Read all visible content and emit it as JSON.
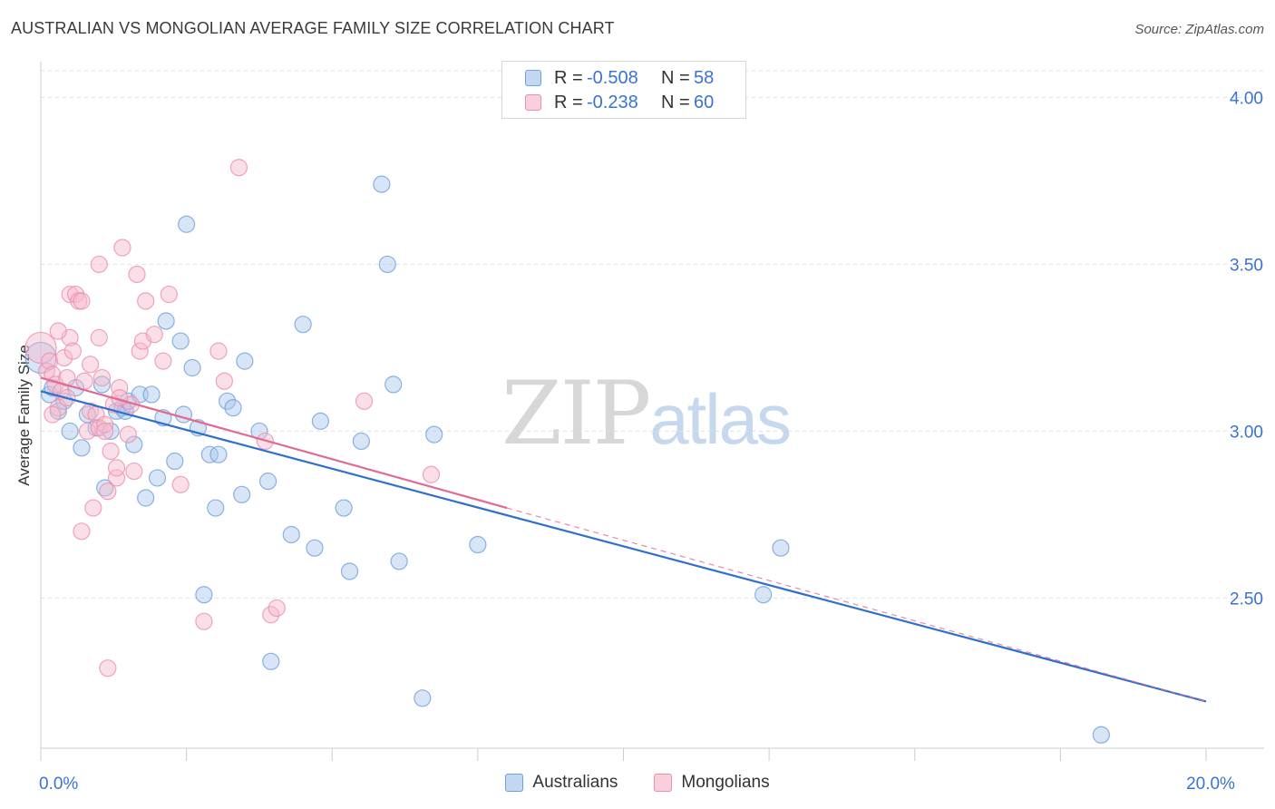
{
  "header": {
    "title": "AUSTRALIAN VS MONGOLIAN AVERAGE FAMILY SIZE CORRELATION CHART",
    "source": "Source: ZipAtlas.com"
  },
  "watermark": {
    "zip": "ZIP",
    "atlas": "atlas"
  },
  "legend": {
    "rows": [
      {
        "r_label": "R =",
        "r_value": "-0.508",
        "n_label": "N =",
        "n_value": "58"
      },
      {
        "r_label": "R =",
        "r_value": "-0.238",
        "n_label": "N =",
        "n_value": "60"
      }
    ]
  },
  "colors": {
    "blue_fill": "#a9c6ee",
    "blue_stroke": "#6f9fdd",
    "blue_line": "#2f6fd0",
    "pink_fill": "#f6b9cc",
    "pink_stroke": "#ec8fab",
    "pink_line": "#e06a93",
    "axis_text": "#3b73d0",
    "grid": "#e0e0e0"
  },
  "chart_data": {
    "type": "scatter",
    "title": "AUSTRALIAN VS MONGOLIAN AVERAGE FAMILY SIZE CORRELATION CHART",
    "xlabel": "",
    "ylabel": "Average Family Size",
    "xlim": [
      0,
      20
    ],
    "ylim": [
      2.05,
      4.08
    ],
    "x_tick_labels": [
      {
        "value": 0,
        "label": "0.0%"
      },
      {
        "value": 20,
        "label": "20.0%"
      }
    ],
    "y_ticks": [
      {
        "value": 2.5,
        "label": "2.50"
      },
      {
        "value": 3.0,
        "label": "3.00"
      },
      {
        "value": 3.5,
        "label": "3.50"
      },
      {
        "value": 4.0,
        "label": "4.00"
      }
    ],
    "grid": true,
    "legend_position": "top-center",
    "series": [
      {
        "name": "Australians",
        "color": "#a9c6ee",
        "trend": {
          "x": [
            0,
            20
          ],
          "y": [
            3.12,
            2.19
          ],
          "style": "solid"
        },
        "points": [
          [
            0.0,
            3.22
          ],
          [
            0.15,
            3.11
          ],
          [
            0.2,
            3.13
          ],
          [
            0.3,
            3.06
          ],
          [
            0.4,
            3.09
          ],
          [
            0.5,
            3.0
          ],
          [
            0.6,
            3.13
          ],
          [
            0.7,
            2.95
          ],
          [
            0.8,
            3.05
          ],
          [
            0.95,
            3.01
          ],
          [
            1.05,
            3.14
          ],
          [
            1.1,
            2.83
          ],
          [
            1.2,
            3.0
          ],
          [
            1.3,
            3.06
          ],
          [
            1.4,
            3.07
          ],
          [
            1.45,
            3.06
          ],
          [
            1.5,
            3.09
          ],
          [
            1.6,
            2.96
          ],
          [
            1.7,
            3.11
          ],
          [
            1.8,
            2.8
          ],
          [
            1.9,
            3.11
          ],
          [
            2.0,
            2.86
          ],
          [
            2.1,
            3.04
          ],
          [
            2.15,
            3.33
          ],
          [
            2.3,
            2.91
          ],
          [
            2.4,
            3.27
          ],
          [
            2.45,
            3.05
          ],
          [
            2.5,
            3.62
          ],
          [
            2.6,
            3.19
          ],
          [
            2.7,
            3.01
          ],
          [
            2.8,
            2.51
          ],
          [
            2.9,
            2.93
          ],
          [
            3.0,
            2.77
          ],
          [
            3.05,
            2.93
          ],
          [
            3.2,
            3.09
          ],
          [
            3.3,
            3.07
          ],
          [
            3.45,
            2.81
          ],
          [
            3.5,
            3.21
          ],
          [
            3.75,
            3.0
          ],
          [
            3.9,
            2.85
          ],
          [
            3.95,
            2.31
          ],
          [
            4.3,
            2.69
          ],
          [
            4.5,
            3.32
          ],
          [
            4.7,
            2.65
          ],
          [
            4.8,
            3.03
          ],
          [
            5.2,
            2.77
          ],
          [
            5.3,
            2.58
          ],
          [
            5.5,
            2.97
          ],
          [
            5.85,
            3.74
          ],
          [
            5.95,
            3.5
          ],
          [
            6.05,
            3.14
          ],
          [
            6.15,
            2.61
          ],
          [
            6.55,
            2.2
          ],
          [
            6.75,
            2.99
          ],
          [
            7.5,
            2.66
          ],
          [
            12.4,
            2.51
          ],
          [
            12.7,
            2.65
          ],
          [
            18.2,
            2.09
          ]
        ]
      },
      {
        "name": "Mongolians",
        "color": "#f6b9cc",
        "trend": {
          "x": [
            0,
            8
          ],
          "y": [
            3.16,
            2.77
          ],
          "style": "solid",
          "extended_to": [
            20,
            2.19
          ],
          "extended_style": "dashed"
        },
        "points": [
          [
            0.0,
            3.25
          ],
          [
            0.1,
            3.18
          ],
          [
            0.15,
            3.21
          ],
          [
            0.2,
            3.17
          ],
          [
            0.25,
            3.14
          ],
          [
            0.3,
            3.07
          ],
          [
            0.35,
            3.12
          ],
          [
            0.4,
            3.22
          ],
          [
            0.45,
            3.16
          ],
          [
            0.5,
            3.28
          ],
          [
            0.55,
            3.24
          ],
          [
            0.5,
            3.41
          ],
          [
            0.6,
            3.41
          ],
          [
            0.65,
            3.39
          ],
          [
            0.7,
            3.39
          ],
          [
            0.7,
            2.7
          ],
          [
            0.8,
            3.0
          ],
          [
            0.85,
            3.06
          ],
          [
            0.9,
            2.77
          ],
          [
            0.95,
            3.05
          ],
          [
            1.0,
            3.01
          ],
          [
            1.0,
            3.28
          ],
          [
            1.05,
            3.16
          ],
          [
            1.1,
            3.02
          ],
          [
            1.15,
            2.82
          ],
          [
            1.2,
            2.94
          ],
          [
            1.25,
            3.08
          ],
          [
            1.3,
            2.86
          ],
          [
            1.3,
            2.89
          ],
          [
            1.35,
            3.13
          ],
          [
            1.4,
            3.55
          ],
          [
            1.5,
            2.99
          ],
          [
            1.55,
            3.08
          ],
          [
            1.6,
            2.88
          ],
          [
            1.65,
            3.47
          ],
          [
            1.7,
            3.24
          ],
          [
            1.75,
            3.27
          ],
          [
            1.8,
            3.39
          ],
          [
            1.95,
            3.29
          ],
          [
            2.1,
            3.21
          ],
          [
            2.2,
            3.41
          ],
          [
            2.4,
            2.84
          ],
          [
            2.8,
            2.43
          ],
          [
            3.05,
            3.24
          ],
          [
            3.15,
            3.15
          ],
          [
            3.4,
            3.79
          ],
          [
            3.85,
            2.97
          ],
          [
            3.95,
            2.45
          ],
          [
            4.05,
            2.47
          ],
          [
            5.55,
            3.09
          ],
          [
            6.7,
            2.87
          ],
          [
            1.15,
            2.29
          ],
          [
            1.0,
            3.5
          ],
          [
            0.3,
            3.3
          ],
          [
            0.45,
            3.1
          ],
          [
            0.85,
            3.2
          ],
          [
            1.1,
            3.0
          ],
          [
            1.35,
            3.1
          ],
          [
            0.2,
            3.05
          ],
          [
            0.75,
            3.15
          ]
        ]
      }
    ]
  },
  "bottom_legend": {
    "items": [
      "Australians",
      "Mongolians"
    ]
  }
}
